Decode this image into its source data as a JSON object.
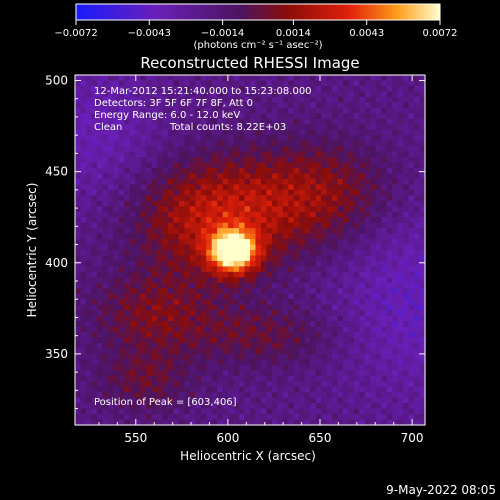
{
  "chart_data": {
    "type": "heatmap",
    "title": "Reconstructed RHESSI Image",
    "xlabel": "Heliocentric X (arcsec)",
    "ylabel": "Heliocentric Y (arcsec)",
    "xlim": [
      517,
      707
    ],
    "ylim": [
      311,
      503
    ],
    "x_ticks": [
      550,
      600,
      650,
      700
    ],
    "y_ticks": [
      350,
      400,
      450,
      500
    ],
    "x_tick_labels": [
      "550",
      "600",
      "650",
      "700"
    ],
    "y_tick_labels": [
      "350",
      "400",
      "450",
      "500"
    ],
    "colorbar": {
      "range": [
        -0.0072,
        0.0072
      ],
      "tick_values": [
        -0.0072,
        -0.0043,
        -0.0014,
        0.0014,
        0.0043,
        0.0072
      ],
      "tick_labels": [
        "−0.0072",
        "−0.0043",
        "−0.0014",
        "0.0014",
        "0.0043",
        "0.0072"
      ],
      "units_label": "(photons cm⁻² s⁻¹ asec⁻²)",
      "colors": [
        "#1a1aff",
        "#6a1fb8",
        "#4b1460",
        "#8a0d0a",
        "#e0200a",
        "#ff9a1a",
        "#ffffcc"
      ]
    },
    "peak": {
      "x": 603,
      "y": 406
    },
    "annotations": {
      "time_range": "12-Mar-2012 15:21:40.000 to 15:23:08.000",
      "detectors": "Detectors: 3F 5F 6F 7F 8F, Att 0",
      "energy": "Energy Range: 6.0 - 12.0 keV",
      "method": "Clean",
      "counts": "Total counts: 8.22E+03",
      "peak_label": "Position of Peak = [603,406]"
    },
    "footer_date": "9-May-2022 08:05"
  }
}
